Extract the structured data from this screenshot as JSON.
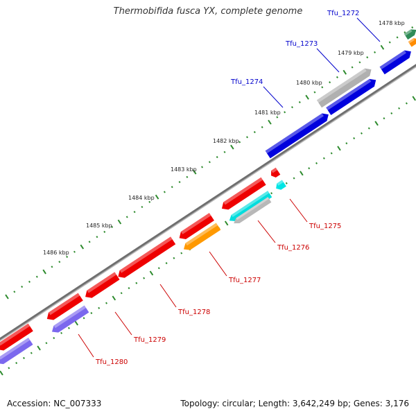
{
  "title": "Thermobifida fusca YX, complete genome",
  "footer": {
    "accession": "Accession: NC_007333",
    "summary": "Topology: circular; Length: 3,642,249 bp; Genes: 3,176"
  },
  "colors": {
    "backbone": "#777777",
    "tick": "#2e8b2e",
    "forward_label": "#0000cc",
    "reverse_label": "#cc0000",
    "leader_forward": "#0000cc",
    "leader_reverse": "#cc0000"
  },
  "kbp_labels": [
    "1478 kbp",
    "1479 kbp",
    "1480 kbp",
    "1481 kbp",
    "1482 kbp",
    "1483 kbp",
    "1484 kbp",
    "1485 kbp",
    "1486 kbp"
  ],
  "gene_labels": [
    {
      "name": "Tfu_1272",
      "strand": "forward"
    },
    {
      "name": "Tfu_1273",
      "strand": "forward"
    },
    {
      "name": "Tfu_1274",
      "strand": "forward"
    },
    {
      "name": "Tfu_1275",
      "strand": "reverse"
    },
    {
      "name": "Tfu_1276",
      "strand": "reverse"
    },
    {
      "name": "Tfu_1277",
      "strand": "reverse"
    },
    {
      "name": "Tfu_1278",
      "strand": "reverse"
    },
    {
      "name": "Tfu_1279",
      "strand": "reverse"
    },
    {
      "name": "Tfu_1280",
      "strand": "reverse"
    }
  ]
}
